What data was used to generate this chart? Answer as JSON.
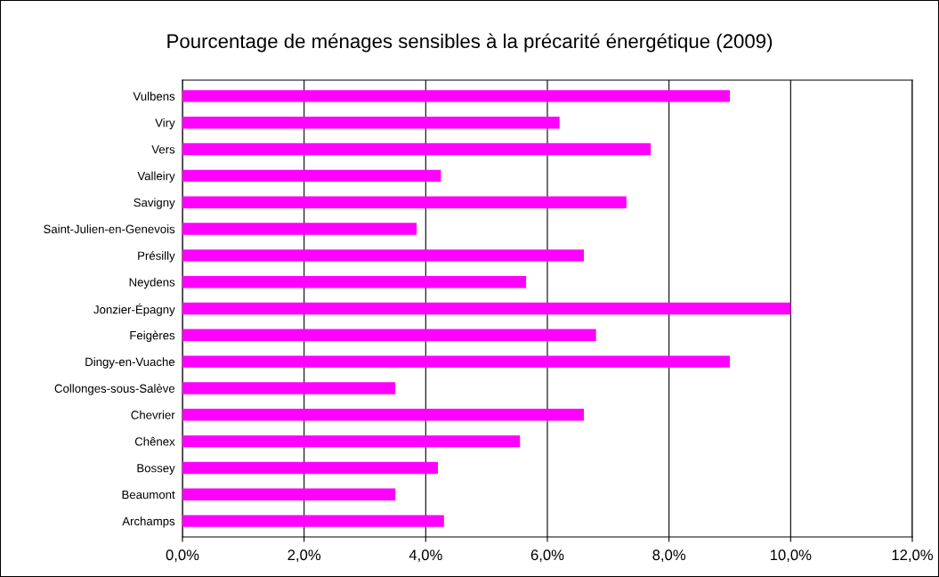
{
  "chart_data": {
    "type": "bar",
    "orientation": "horizontal",
    "title": "Pourcentage de ménages sensibles à la précarité énergétique (2009)",
    "categories": [
      "Vulbens",
      "Viry",
      "Vers",
      "Valleiry",
      "Savigny",
      "Saint-Julien-en-Genevois",
      "Présilly",
      "Neydens",
      "Jonzier-Épagny",
      "Feigères",
      "Dingy-en-Vuache",
      "Collonges-sous-Salève",
      "Chevrier",
      "Chênex",
      "Bossey",
      "Beaumont",
      "Archamps"
    ],
    "values": [
      9.0,
      6.2,
      7.7,
      4.25,
      7.3,
      3.85,
      6.6,
      5.65,
      10.0,
      6.8,
      9.0,
      3.5,
      6.6,
      5.55,
      4.2,
      3.5,
      4.3
    ],
    "color": "#ff00ff",
    "xlim": [
      0,
      12
    ],
    "xticks": [
      {
        "value": 0,
        "label": "0,0%"
      },
      {
        "value": 2,
        "label": "2,0%"
      },
      {
        "value": 4,
        "label": "4,0%"
      },
      {
        "value": 6,
        "label": "6,0%"
      },
      {
        "value": 8,
        "label": "8,0%"
      },
      {
        "value": 10,
        "label": "10,0%"
      },
      {
        "value": 12,
        "label": "12,0%"
      }
    ],
    "grid": "x",
    "legend": false
  }
}
